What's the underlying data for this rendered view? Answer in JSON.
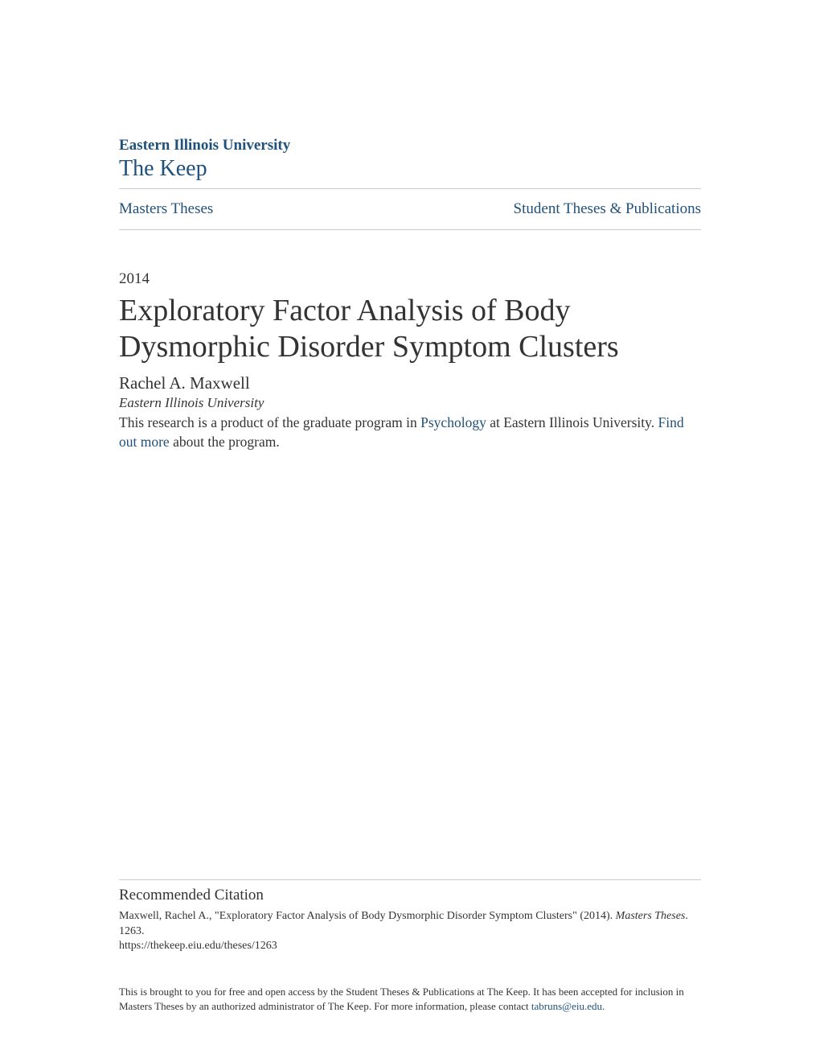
{
  "header": {
    "institution": "Eastern Illinois University",
    "repository": "The Keep",
    "institution_color": "#20517b"
  },
  "nav": {
    "left_link": "Masters Theses",
    "right_link": "Student Theses & Publications",
    "link_color": "#20517b"
  },
  "document": {
    "year": "2014",
    "title": "Exploratory Factor Analysis of Body Dysmorphic Disorder Symptom Clusters",
    "author": "Rachel A. Maxwell",
    "affiliation": "Eastern Illinois University",
    "description_part1": "This research is a product of the graduate program in ",
    "description_link1": "Psychology",
    "description_part2": " at Eastern Illinois University. ",
    "description_link2": "Find out more",
    "description_part3": " about the program."
  },
  "citation": {
    "heading": "Recommended Citation",
    "author": "Maxwell, Rachel A., ",
    "title_quoted": "\"Exploratory Factor Analysis of Body Dysmorphic Disorder Symptom Clusters\" (2014). ",
    "series": "Masters Theses",
    "number": ". 1263.",
    "url": "https://thekeep.eiu.edu/theses/1263"
  },
  "footer": {
    "text_part1": "This is brought to you for free and open access by the Student Theses & Publications at The Keep. It has been accepted for inclusion in Masters Theses by an authorized administrator of The Keep. For more information, please contact ",
    "email_link": "tabruns@eiu.edu",
    "text_part2": "."
  },
  "colors": {
    "text_primary": "#333333",
    "link": "#20517b",
    "border": "#cccccc",
    "background": "#ffffff"
  }
}
